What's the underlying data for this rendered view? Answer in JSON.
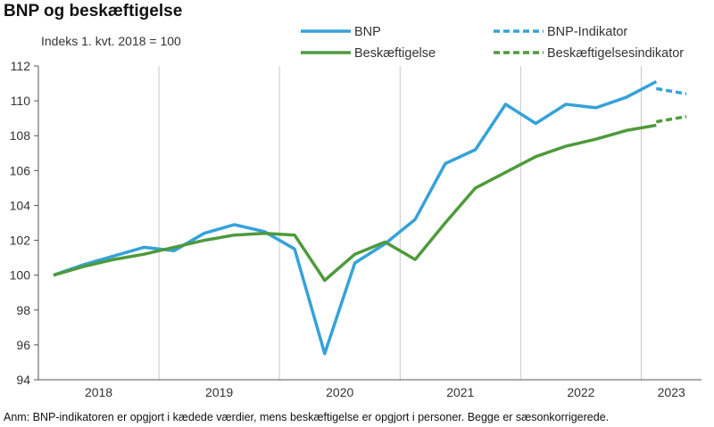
{
  "title": "BNP og beskæftigelse",
  "note": "Anm: BNP-indikatoren er opgjort i kædede værdier, mens beskæftigelse er opgjort i personer. Begge er sæsonkorrigerede.",
  "chart_data": {
    "type": "line",
    "title": "BNP og beskæftigelse",
    "ylabel": "Indeks 1. kvt. 2018 = 100",
    "ylim": [
      94,
      112
    ],
    "yticks": [
      94,
      96,
      98,
      100,
      102,
      104,
      106,
      108,
      110,
      112
    ],
    "x_groups": [
      "2018",
      "2019",
      "2020",
      "2021",
      "2022",
      "2023"
    ],
    "x": [
      "2018Q1",
      "2018Q2",
      "2018Q3",
      "2018Q4",
      "2019Q1",
      "2019Q2",
      "2019Q3",
      "2019Q4",
      "2020Q1",
      "2020Q2",
      "2020Q3",
      "2020Q4",
      "2021Q1",
      "2021Q2",
      "2021Q3",
      "2021Q4",
      "2022Q1",
      "2022Q2",
      "2022Q3",
      "2022Q4",
      "2023Q1",
      "2023Q2"
    ],
    "grid": "vertical",
    "legend": "top",
    "series": [
      {
        "name": "BNP",
        "color": "#35A2DA",
        "style": "solid",
        "x": [
          "2018Q1",
          "2018Q2",
          "2018Q3",
          "2018Q4",
          "2019Q1",
          "2019Q2",
          "2019Q3",
          "2019Q4",
          "2020Q1",
          "2020Q2",
          "2020Q3",
          "2020Q4",
          "2021Q1",
          "2021Q2",
          "2021Q3",
          "2021Q4",
          "2022Q1",
          "2022Q2",
          "2022Q3",
          "2022Q4",
          "2023Q1"
        ],
        "values": [
          100.0,
          100.6,
          101.1,
          101.6,
          101.4,
          102.4,
          102.9,
          102.5,
          101.5,
          95.5,
          100.7,
          101.8,
          103.2,
          106.4,
          107.2,
          109.8,
          108.7,
          109.8,
          109.6,
          110.2,
          111.1
        ]
      },
      {
        "name": "BNP-Indikator",
        "color": "#35A2DA",
        "style": "dashed",
        "x": [
          "2023Q1",
          "2023Q2"
        ],
        "values": [
          110.7,
          110.4
        ]
      },
      {
        "name": "Beskæftigelse",
        "color": "#4E9A3C",
        "style": "solid",
        "x": [
          "2018Q1",
          "2018Q2",
          "2018Q3",
          "2018Q4",
          "2019Q1",
          "2019Q2",
          "2019Q3",
          "2019Q4",
          "2020Q1",
          "2020Q2",
          "2020Q3",
          "2020Q4",
          "2021Q1",
          "2021Q2",
          "2021Q3",
          "2021Q4",
          "2022Q1",
          "2022Q2",
          "2022Q3",
          "2022Q4",
          "2023Q1"
        ],
        "values": [
          100.0,
          100.5,
          100.9,
          101.2,
          101.6,
          102.0,
          102.3,
          102.4,
          102.3,
          99.7,
          101.2,
          101.9,
          100.9,
          103.0,
          105.0,
          105.9,
          106.8,
          107.4,
          107.8,
          108.3,
          108.6
        ]
      },
      {
        "name": "Beskæftigelsesindikator",
        "color": "#4E9A3C",
        "style": "dashed",
        "x": [
          "2023Q1",
          "2023Q2"
        ],
        "values": [
          108.8,
          109.1
        ]
      }
    ]
  }
}
